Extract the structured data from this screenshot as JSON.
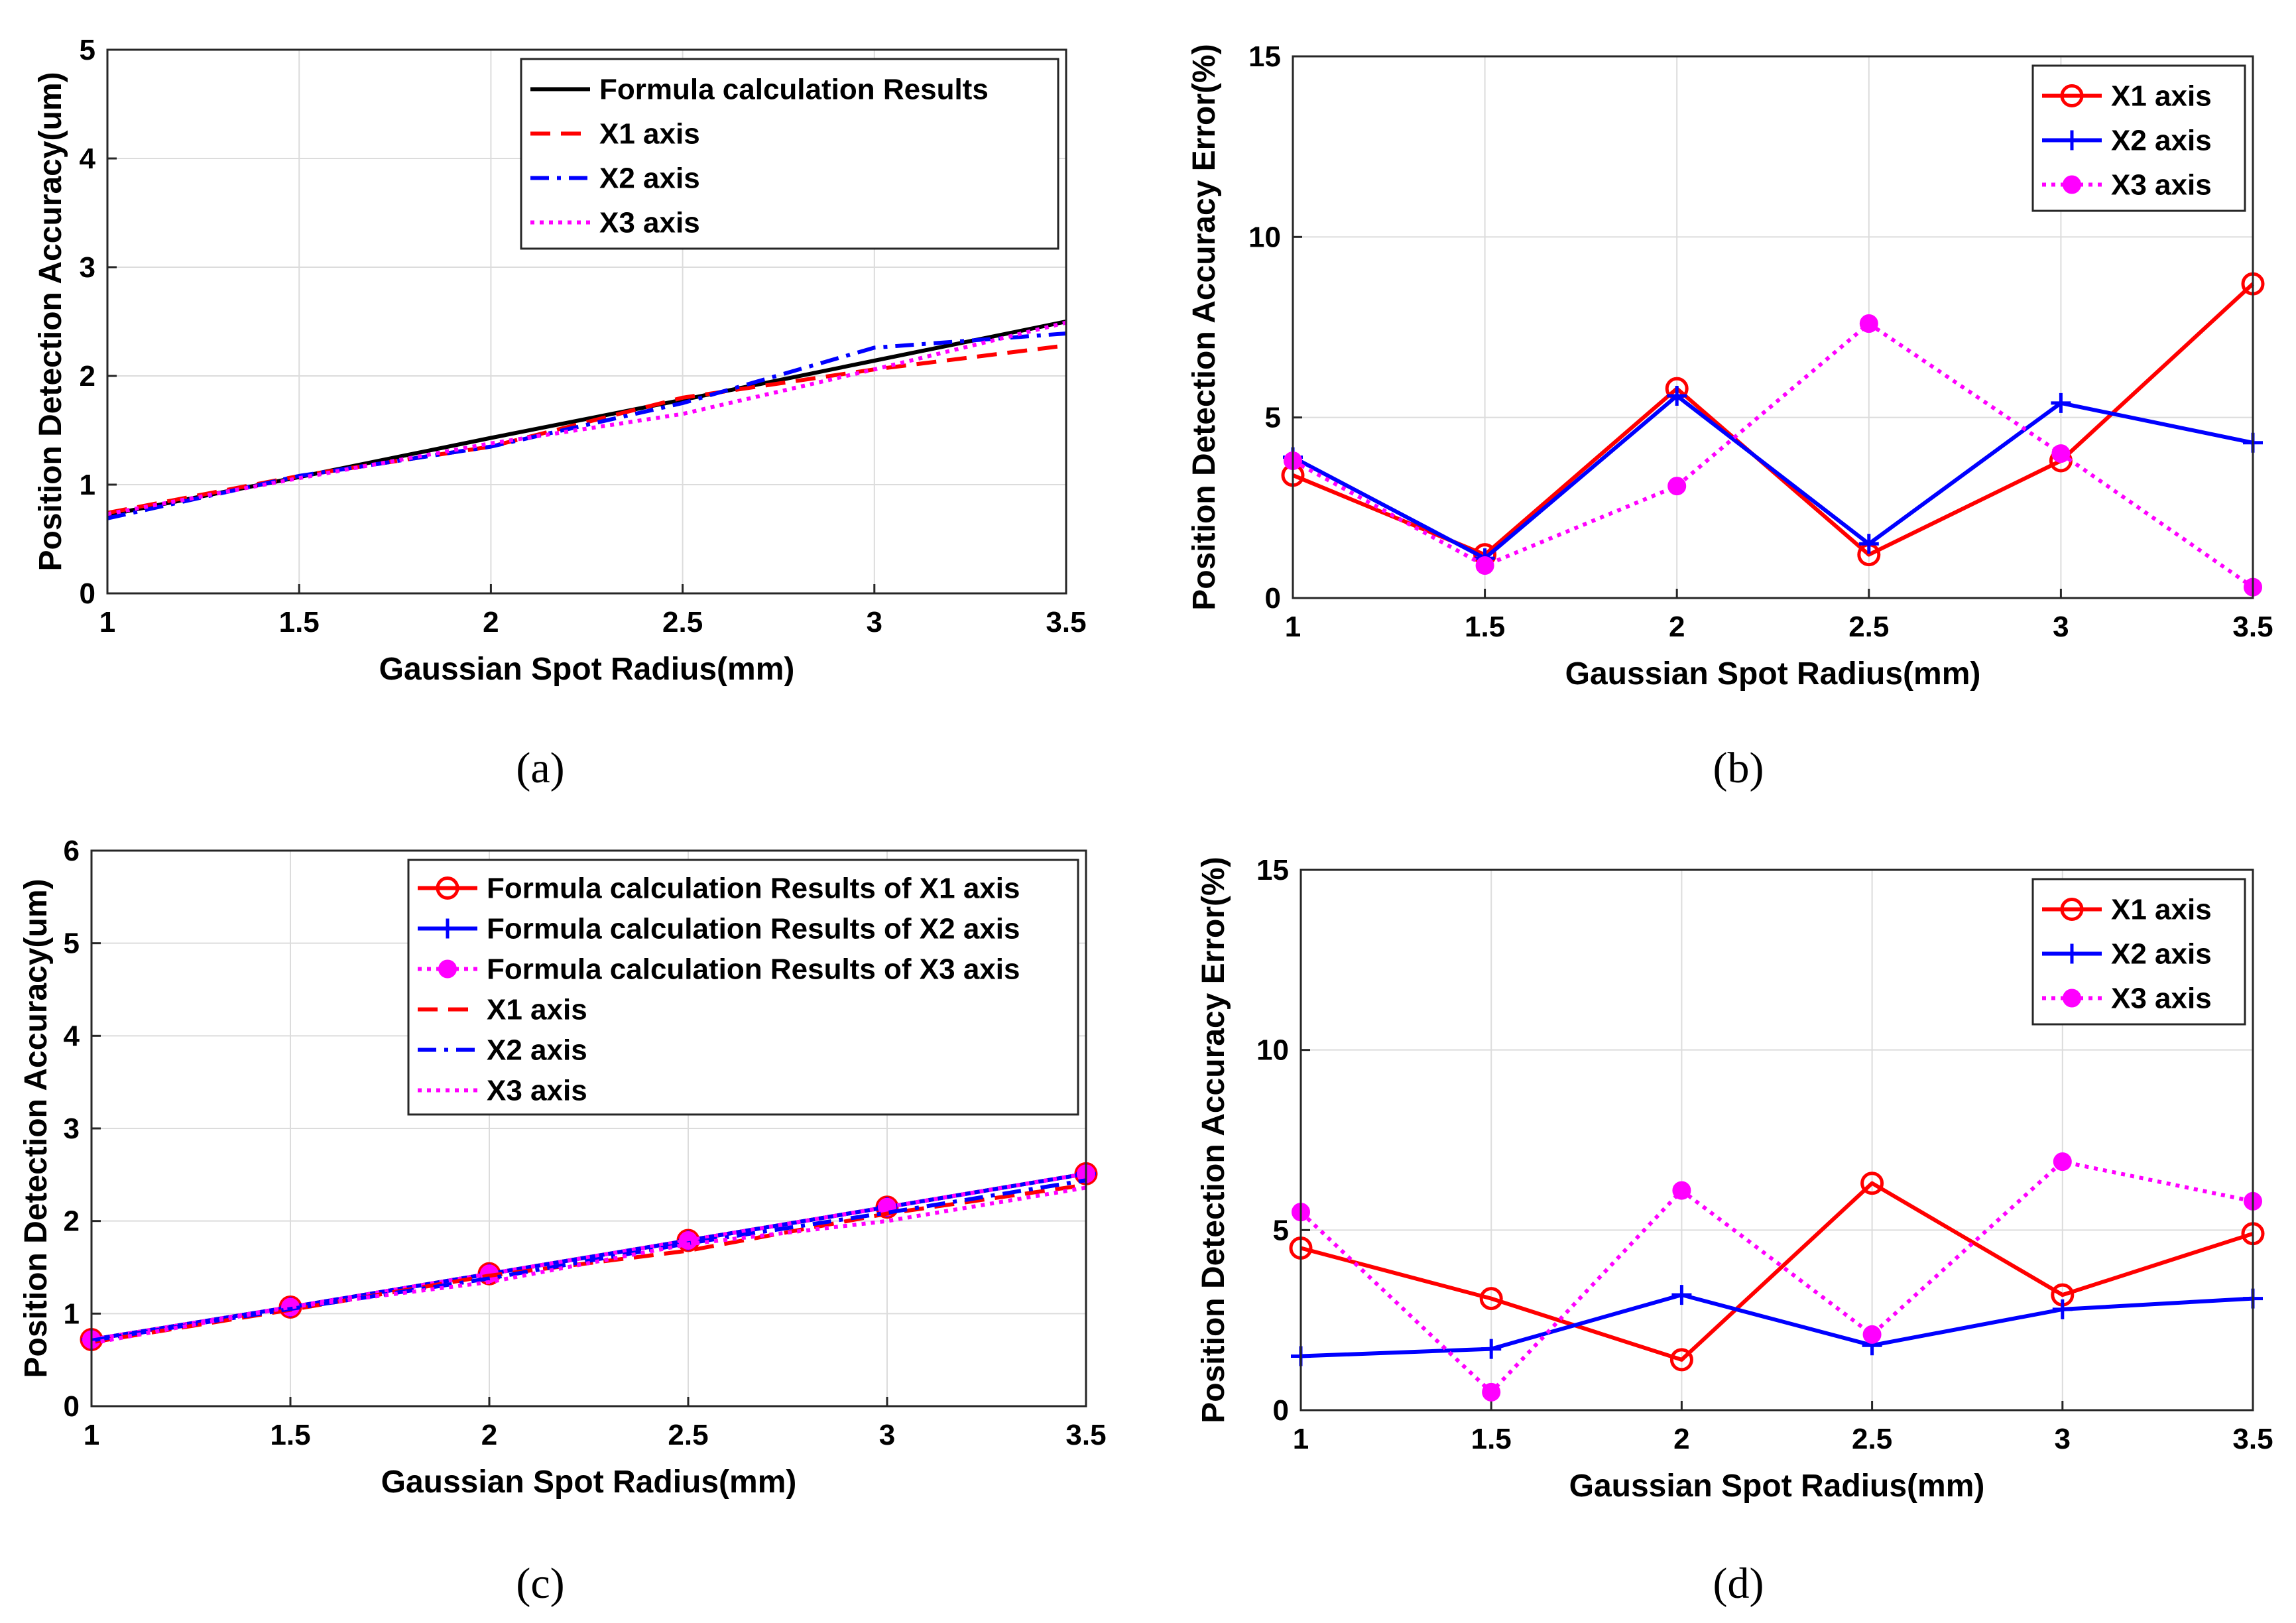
{
  "chart_data": [
    {
      "id": "a",
      "type": "line",
      "caption": "(a)",
      "xlabel": "Gaussian Spot Radius(mm)",
      "ylabel": "Position Detection Accuracy(um)",
      "xlim": [
        1,
        3.5
      ],
      "ylim": [
        0,
        5
      ],
      "xticks": [
        1,
        1.5,
        2,
        2.5,
        3,
        3.5
      ],
      "yticks": [
        0,
        1,
        2,
        3,
        4,
        5
      ],
      "grid": true,
      "legend_position": "top-right",
      "series": [
        {
          "name": "Formula calculation Results",
          "color": "#000000",
          "style": "solid",
          "marker": "none",
          "x": [
            1,
            1.5,
            2,
            2.5,
            3,
            3.5
          ],
          "y": [
            0.72,
            1.07,
            1.43,
            1.78,
            2.14,
            2.5
          ]
        },
        {
          "name": "X1 axis",
          "color": "#ff0000",
          "style": "dashed",
          "marker": "none",
          "x": [
            1,
            1.5,
            2,
            2.5,
            3,
            3.5
          ],
          "y": [
            0.74,
            1.08,
            1.35,
            1.8,
            2.06,
            2.28
          ]
        },
        {
          "name": "X2 axis",
          "color": "#0000ff",
          "style": "dashdot",
          "marker": "none",
          "x": [
            1,
            1.5,
            2,
            2.5,
            3,
            3.5
          ],
          "y": [
            0.69,
            1.08,
            1.35,
            1.75,
            2.26,
            2.39
          ]
        },
        {
          "name": "X3 axis",
          "color": "#ff00ff",
          "style": "dotted",
          "marker": "none",
          "x": [
            1,
            1.5,
            2,
            2.5,
            3,
            3.5
          ],
          "y": [
            0.73,
            1.06,
            1.38,
            1.65,
            2.06,
            2.49
          ]
        }
      ]
    },
    {
      "id": "b",
      "type": "line",
      "caption": "(b)",
      "xlabel": "Gaussian Spot Radius(mm)",
      "ylabel": "Position Detection Accuracy Error(%)",
      "xlim": [
        1,
        3.5
      ],
      "ylim": [
        0,
        15
      ],
      "xticks": [
        1,
        1.5,
        2,
        2.5,
        3,
        3.5
      ],
      "yticks": [
        0,
        5,
        10,
        15
      ],
      "grid": true,
      "legend_position": "top-right",
      "series": [
        {
          "name": "X1 axis",
          "color": "#ff0000",
          "style": "solid",
          "marker": "circle",
          "x": [
            1,
            1.5,
            2,
            2.5,
            3,
            3.5
          ],
          "y": [
            3.4,
            1.2,
            5.8,
            1.2,
            3.8,
            8.7
          ]
        },
        {
          "name": "X2 axis",
          "color": "#0000ff",
          "style": "solid",
          "marker": "plus",
          "x": [
            1,
            1.5,
            2,
            2.5,
            3,
            3.5
          ],
          "y": [
            3.9,
            1.1,
            5.6,
            1.5,
            5.4,
            4.3
          ]
        },
        {
          "name": "X3 axis",
          "color": "#ff00ff",
          "style": "dotted",
          "marker": "dot",
          "x": [
            1,
            1.5,
            2,
            2.5,
            3,
            3.5
          ],
          "y": [
            3.8,
            0.9,
            3.1,
            7.6,
            4.0,
            0.3
          ]
        }
      ]
    },
    {
      "id": "c",
      "type": "line",
      "caption": "(c)",
      "xlabel": "Gaussian Spot Radius(mm)",
      "ylabel": "Position Detection Accuracy(um)",
      "xlim": [
        1,
        3.5
      ],
      "ylim": [
        0,
        6
      ],
      "xticks": [
        1,
        1.5,
        2,
        2.5,
        3,
        3.5
      ],
      "yticks": [
        0,
        1,
        2,
        3,
        4,
        5,
        6
      ],
      "grid": true,
      "legend_position": "top-right",
      "series": [
        {
          "name": "Formula calculation Results of X1 axis",
          "color": "#ff0000",
          "style": "solid",
          "marker": "circle",
          "x": [
            1,
            1.5,
            2,
            2.5,
            3,
            3.5
          ],
          "y": [
            0.72,
            1.07,
            1.43,
            1.79,
            2.15,
            2.51
          ]
        },
        {
          "name": "Formula calculation Results of X2 axis",
          "color": "#0000ff",
          "style": "solid",
          "marker": "plus",
          "x": [
            1,
            1.5,
            2,
            2.5,
            3,
            3.5
          ],
          "y": [
            0.72,
            1.07,
            1.43,
            1.79,
            2.15,
            2.51
          ]
        },
        {
          "name": "Formula calculation Results of X3 axis",
          "color": "#ff00ff",
          "style": "dotted",
          "marker": "dot",
          "x": [
            1,
            1.5,
            2,
            2.5,
            3,
            3.5
          ],
          "y": [
            0.72,
            1.07,
            1.43,
            1.79,
            2.15,
            2.51
          ]
        },
        {
          "name": "X1 axis",
          "color": "#ff0000",
          "style": "dashed",
          "marker": "none",
          "x": [
            1,
            1.5,
            2,
            2.5,
            3,
            3.5
          ],
          "y": [
            0.69,
            1.04,
            1.41,
            1.68,
            2.08,
            2.39
          ]
        },
        {
          "name": "X2 axis",
          "color": "#0000ff",
          "style": "dashdot",
          "marker": "none",
          "x": [
            1,
            1.5,
            2,
            2.5,
            3,
            3.5
          ],
          "y": [
            0.71,
            1.05,
            1.38,
            1.76,
            2.09,
            2.44
          ]
        },
        {
          "name": "X3 axis",
          "color": "#ff00ff",
          "style": "dotted",
          "marker": "none",
          "x": [
            1,
            1.5,
            2,
            2.5,
            3,
            3.5
          ],
          "y": [
            0.68,
            1.07,
            1.34,
            1.75,
            2.0,
            2.36
          ]
        }
      ]
    },
    {
      "id": "d",
      "type": "line",
      "caption": "(d)",
      "xlabel": "Gaussian Spot Radius(mm)",
      "ylabel": "Position Detection Accuracy Error(%)",
      "xlim": [
        1,
        3.5
      ],
      "ylim": [
        0,
        15
      ],
      "xticks": [
        1,
        1.5,
        2,
        2.5,
        3,
        3.5
      ],
      "yticks": [
        0,
        5,
        10,
        15
      ],
      "grid": true,
      "legend_position": "top-right",
      "series": [
        {
          "name": "X1 axis",
          "color": "#ff0000",
          "style": "solid",
          "marker": "circle",
          "x": [
            1,
            1.5,
            2,
            2.5,
            3,
            3.5
          ],
          "y": [
            4.5,
            3.1,
            1.4,
            6.3,
            3.2,
            4.9
          ]
        },
        {
          "name": "X2 axis",
          "color": "#0000ff",
          "style": "solid",
          "marker": "plus",
          "x": [
            1,
            1.5,
            2,
            2.5,
            3,
            3.5
          ],
          "y": [
            1.5,
            1.7,
            3.2,
            1.8,
            2.8,
            3.1
          ]
        },
        {
          "name": "X3 axis",
          "color": "#ff00ff",
          "style": "dotted",
          "marker": "dot",
          "x": [
            1,
            1.5,
            2,
            2.5,
            3,
            3.5
          ],
          "y": [
            5.5,
            0.5,
            6.1,
            2.1,
            6.9,
            5.8
          ]
        }
      ]
    }
  ]
}
